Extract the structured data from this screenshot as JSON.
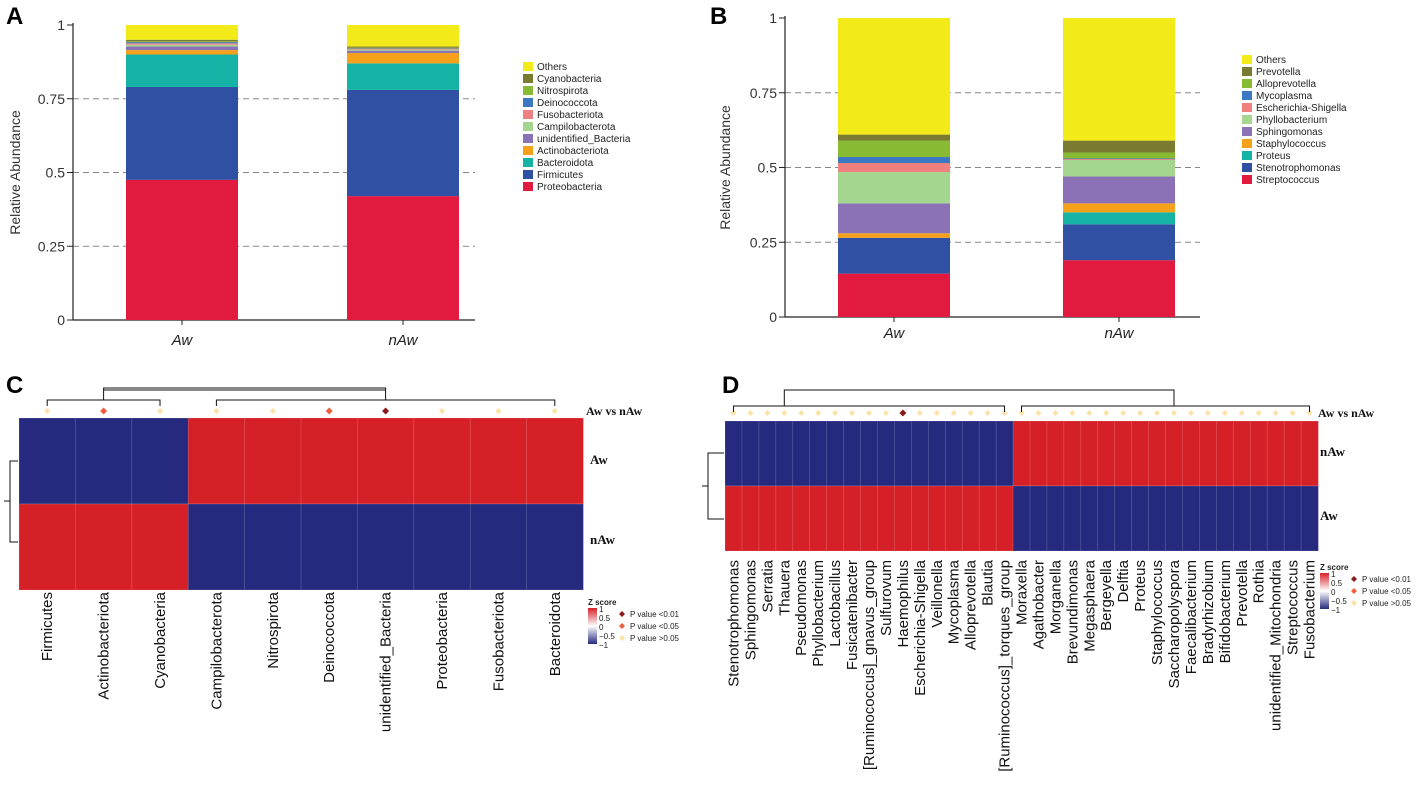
{
  "chart_data": [
    {
      "id": "A",
      "type": "bar",
      "stacked": true,
      "panel_label": "A",
      "ylabel": "Relative Abundance",
      "ylim": [
        0,
        1
      ],
      "yticks": [
        "0",
        "0.25",
        "0.5",
        "0.75",
        "1"
      ],
      "grid": "dashed horizontal",
      "categories": [
        "Aw",
        "nAw"
      ],
      "legend": [
        "Others",
        "Cyanobacteria",
        "Nitrospirota",
        "Deinococcota",
        "Fusobacteriota",
        "Campilobacterota",
        "unidentified_Bacteria",
        "Actinobacteriota",
        "Bacteroidota",
        "Firmicutes",
        "Proteobacteria"
      ],
      "series": [
        {
          "name": "Proteobacteria",
          "color": "#e31a3f",
          "values": [
            0.475,
            0.42
          ]
        },
        {
          "name": "Firmicutes",
          "color": "#3050a4",
          "values": [
            0.315,
            0.36
          ]
        },
        {
          "name": "Bacteroidota",
          "color": "#15b3a6",
          "values": [
            0.11,
            0.09
          ]
        },
        {
          "name": "Actinobacteriota",
          "color": "#f7a11a",
          "values": [
            0.015,
            0.035
          ]
        },
        {
          "name": "unidentified_Bacteria",
          "color": "#8b72b6",
          "values": [
            0.012,
            0.008
          ]
        },
        {
          "name": "Campilobacterota",
          "color": "#a5d68f",
          "values": [
            0.006,
            0.004
          ]
        },
        {
          "name": "Fusobacteriota",
          "color": "#f08080",
          "values": [
            0.005,
            0.003
          ]
        },
        {
          "name": "Deinococcota",
          "color": "#3a78c3",
          "values": [
            0.004,
            0.002
          ]
        },
        {
          "name": "Nitrospirota",
          "color": "#88bb33",
          "values": [
            0.003,
            0.001
          ]
        },
        {
          "name": "Cyanobacteria",
          "color": "#7a7a30",
          "values": [
            0.005,
            0.004
          ]
        },
        {
          "name": "Others",
          "color": "#f3ea1a",
          "values": [
            0.05,
            0.073
          ]
        }
      ]
    },
    {
      "id": "B",
      "type": "bar",
      "stacked": true,
      "panel_label": "B",
      "ylabel": "Relative Abundance",
      "ylim": [
        0,
        1
      ],
      "yticks": [
        "0",
        "0.25",
        "0.5",
        "0.75",
        "1"
      ],
      "grid": "dashed horizontal",
      "categories": [
        "Aw",
        "nAw"
      ],
      "legend": [
        "Others",
        "Prevotella",
        "Alloprevotella",
        "Mycoplasma",
        "Escherichia-Shigella",
        "Phyllobacterium",
        "Sphingomonas",
        "Staphylococcus",
        "Proteus",
        "Stenotrophomonas",
        "Streptococcus"
      ],
      "series": [
        {
          "name": "Streptococcus",
          "color": "#e31a3f",
          "values": [
            0.145,
            0.19
          ]
        },
        {
          "name": "Stenotrophomonas",
          "color": "#3050a4",
          "values": [
            0.12,
            0.12
          ]
        },
        {
          "name": "Proteus",
          "color": "#15b3a6",
          "values": [
            0.0,
            0.04
          ]
        },
        {
          "name": "Staphylococcus",
          "color": "#f7a11a",
          "values": [
            0.015,
            0.03
          ]
        },
        {
          "name": "Sphingomonas",
          "color": "#8b72b6",
          "values": [
            0.1,
            0.09
          ]
        },
        {
          "name": "Phyllobacterium",
          "color": "#a5d68f",
          "values": [
            0.105,
            0.055
          ]
        },
        {
          "name": "Escherichia-Shigella",
          "color": "#f08080",
          "values": [
            0.03,
            0.003
          ]
        },
        {
          "name": "Mycoplasma",
          "color": "#3a78c3",
          "values": [
            0.02,
            0.002
          ]
        },
        {
          "name": "Alloprevotella",
          "color": "#88bb33",
          "values": [
            0.055,
            0.02
          ]
        },
        {
          "name": "Prevotella",
          "color": "#7a7a30",
          "values": [
            0.02,
            0.04
          ]
        },
        {
          "name": "Others",
          "color": "#f3ea1a",
          "values": [
            0.39,
            0.41
          ]
        }
      ]
    },
    {
      "id": "C",
      "type": "heatmap",
      "panel_label": "C",
      "comparison_label": "Aw vs nAw",
      "rows": [
        "Aw",
        "nAw"
      ],
      "columns": [
        "Firmicutes",
        "Actinobacteriota",
        "Cyanobacteria",
        "Campilobacterota",
        "Nitrospirota",
        "Deinococcota",
        "unidentified_Bacteria",
        "Proteobacteria",
        "Fusobacteriota",
        "Bacteroidota"
      ],
      "values": [
        [
          -1,
          -1,
          -1,
          1,
          1,
          1,
          1,
          1,
          1,
          1
        ],
        [
          1,
          1,
          1,
          -1,
          -1,
          -1,
          -1,
          -1,
          -1,
          -1
        ]
      ],
      "significance": [
        "gt05",
        "lt05",
        "gt05",
        "gt05",
        "gt05",
        "lt05",
        "lt01",
        "gt05",
        "gt05",
        "gt05"
      ],
      "colorbar_title": "Z score",
      "colorbar_ticks": [
        "1",
        "0.5",
        "0",
        "−0.5",
        "−1"
      ],
      "pvalue_legend": [
        "P value <0.01",
        "P value <0.05",
        "P value >0.05"
      ]
    },
    {
      "id": "D",
      "type": "heatmap",
      "panel_label": "D",
      "comparison_label": "Aw vs nAw",
      "rows": [
        "nAw",
        "Aw"
      ],
      "columns": [
        "Stenotrophomonas",
        "Sphingomonas",
        "Serratia",
        "Thauera",
        "Pseudomonas",
        "Phyllobacterium",
        "Lactobacillus",
        "Fusicatenibacter",
        "[Ruminococcus]_gnavus_group",
        "Sulfurovum",
        "Haemophilus",
        "Escherichia-Shigella",
        "Veillonella",
        "Mycoplasma",
        "Alloprevotella",
        "Blautia",
        "[Ruminococcus]_torques_group",
        "Moraxella",
        "Agathobacter",
        "Morganella",
        "Brevundimonas",
        "Megasphaera",
        "Bergeyella",
        "Delftia",
        "Proteus",
        "Staphylococcus",
        "Saccharopolyspora",
        "Faecalibacterium",
        "Bradyrhizobium",
        "Bifidobacterium",
        "Prevotella",
        "Rothia",
        "unidentified_Mitochondria",
        "Streptococcus",
        "Fusobacterium"
      ],
      "values": [
        [
          -1,
          -1,
          -1,
          -1,
          -1,
          -1,
          -1,
          -1,
          -1,
          -1,
          -1,
          -1,
          -1,
          -1,
          -1,
          -1,
          -1,
          1,
          1,
          1,
          1,
          1,
          1,
          1,
          1,
          1,
          1,
          1,
          1,
          1,
          1,
          1,
          1,
          1,
          1
        ],
        [
          1,
          1,
          1,
          1,
          1,
          1,
          1,
          1,
          1,
          1,
          1,
          1,
          1,
          1,
          1,
          1,
          1,
          -1,
          -1,
          -1,
          -1,
          -1,
          -1,
          -1,
          -1,
          -1,
          -1,
          -1,
          -1,
          -1,
          -1,
          -1,
          -1,
          -1,
          -1
        ]
      ],
      "significance": [
        "gt05",
        "gt05",
        "gt05",
        "gt05",
        "gt05",
        "gt05",
        "gt05",
        "gt05",
        "gt05",
        "gt05",
        "lt01",
        "gt05",
        "gt05",
        "gt05",
        "gt05",
        "gt05",
        "gt05",
        "gt05",
        "gt05",
        "gt05",
        "gt05",
        "gt05",
        "gt05",
        "gt05",
        "gt05",
        "gt05",
        "gt05",
        "gt05",
        "gt05",
        "gt05",
        "gt05",
        "gt05",
        "gt05",
        "gt05",
        "gt05"
      ],
      "colorbar_title": "Z score",
      "colorbar_ticks": [
        "1",
        "0.5",
        "0",
        "−0.5",
        "−1"
      ],
      "pvalue_legend": [
        "P value <0.01",
        "P value <0.05",
        "P value >0.05"
      ]
    }
  ],
  "colors": {
    "high": "#d62027",
    "low": "#262a7e",
    "sig_lt01": "#8b1a1a",
    "sig_lt05": "#f0603e",
    "sig_gt05": "#fde2a8",
    "grid": "#888888"
  }
}
